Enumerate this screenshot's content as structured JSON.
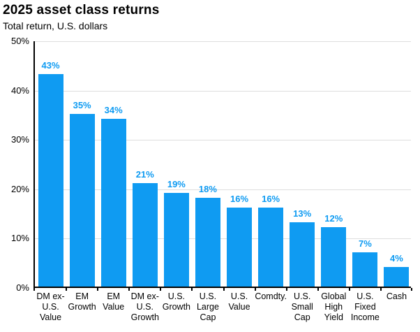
{
  "title": "2025 asset class returns",
  "subtitle": "Total return, U.S. dollars",
  "colors": {
    "bar": "#0f9bf2",
    "value_label": "#0f9bf2",
    "grid": "#dedede",
    "axis": "#000000",
    "text": "#000000",
    "background": "#ffffff"
  },
  "chart_data": {
    "type": "bar",
    "title": "2025 asset class returns",
    "subtitle": "Total return, U.S. dollars",
    "unit": "%",
    "categories": [
      "DM ex-U.S. Value",
      "EM Growth",
      "EM Value",
      "DM ex-U.S. Growth",
      "U.S. Growth",
      "U.S. Large Cap",
      "U.S. Value",
      "Comdty.",
      "U.S. Small Cap",
      "Global High Yield",
      "U.S. Fixed Income",
      "Cash"
    ],
    "category_lines": [
      [
        "DM ex-",
        "U.S.",
        "Value"
      ],
      [
        "EM",
        "Growth"
      ],
      [
        "EM",
        "Value"
      ],
      [
        "DM ex-",
        "U.S.",
        "Growth"
      ],
      [
        "U.S.",
        "Growth"
      ],
      [
        "U.S.",
        "Large",
        "Cap"
      ],
      [
        "U.S.",
        "Value"
      ],
      [
        "Comdty."
      ],
      [
        "U.S.",
        "Small",
        "Cap"
      ],
      [
        "Global",
        "High",
        "Yield"
      ],
      [
        "U.S.",
        "Fixed",
        "Income"
      ],
      [
        "Cash"
      ]
    ],
    "values": [
      43,
      35,
      34,
      21,
      19,
      18,
      16,
      16,
      13,
      12,
      7,
      4
    ],
    "value_labels": [
      "43%",
      "35%",
      "34%",
      "21%",
      "19%",
      "18%",
      "16%",
      "16%",
      "13%",
      "12%",
      "7%",
      "4%"
    ],
    "xlabel": "",
    "ylabel": "",
    "ylim": [
      0,
      50
    ],
    "yticks": [
      50,
      40,
      30,
      20,
      10,
      0
    ],
    "ytick_labels": [
      "50%",
      "40%",
      "30%",
      "20%",
      "10%",
      "0%"
    ],
    "grid": true,
    "legend_position": "none"
  }
}
